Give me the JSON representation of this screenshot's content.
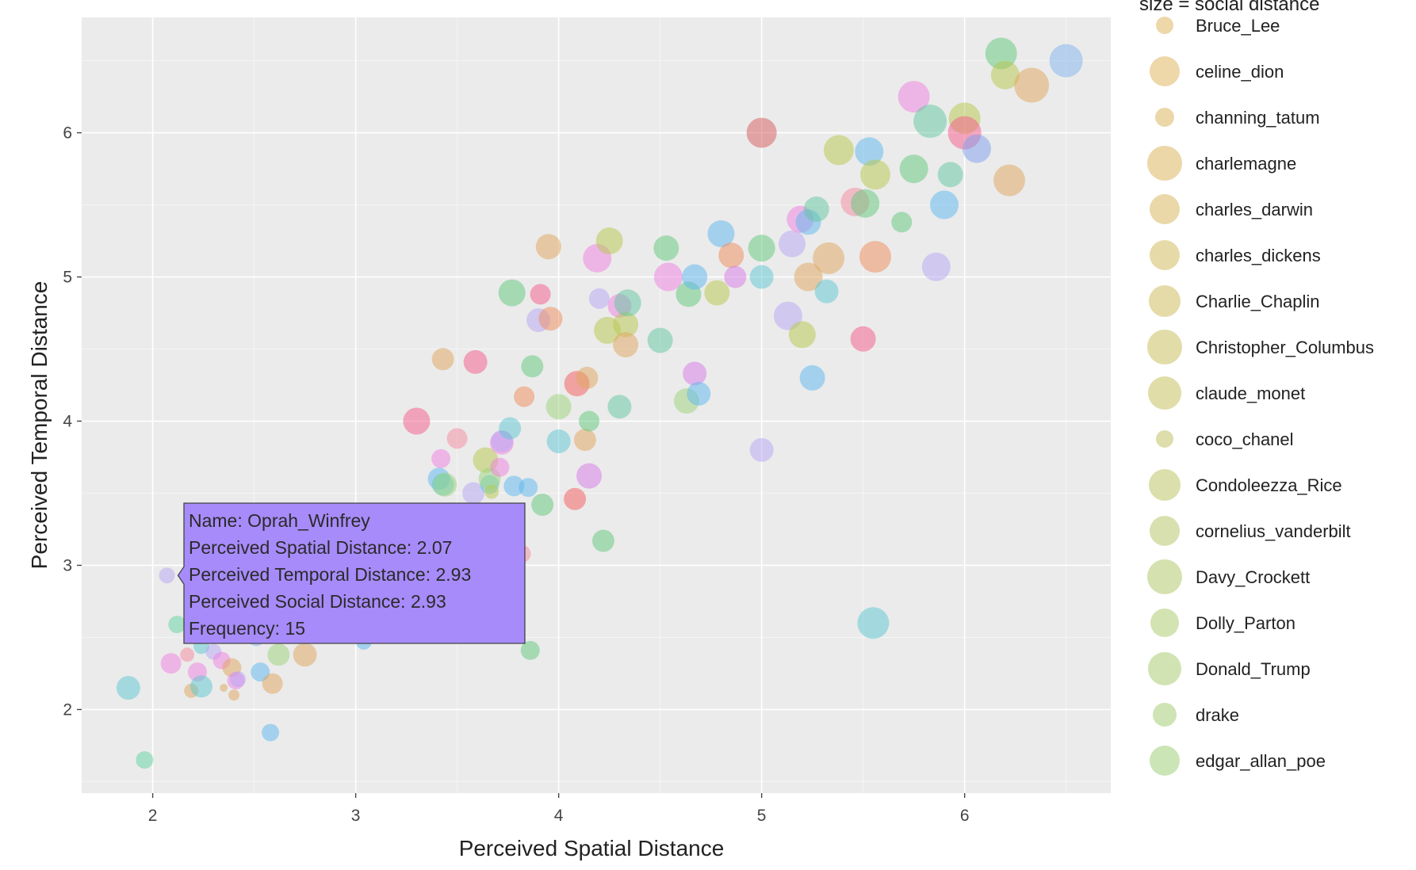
{
  "chart_data": {
    "type": "scatter",
    "xlabel": "Perceived Spatial Distance",
    "ylabel": "Perceived Temporal Distance",
    "xlim": [
      1.65,
      6.72
    ],
    "ylim": [
      1.42,
      6.8
    ],
    "xticks": [
      2,
      3,
      4,
      5,
      6
    ],
    "yticks": [
      2,
      3,
      4,
      5,
      6
    ],
    "grid": true,
    "legend_title": "size = social distance",
    "legend": [
      {
        "name": "Bruce_Lee",
        "color": "#e8c98c",
        "size": 11
      },
      {
        "name": "celine_dion",
        "color": "#e8c98c",
        "size": 19
      },
      {
        "name": "channing_tatum",
        "color": "#e6c98c",
        "size": 12
      },
      {
        "name": "charlemagne",
        "color": "#e5ca8c",
        "size": 22
      },
      {
        "name": "charles_darwin",
        "color": "#e3cb8c",
        "size": 19
      },
      {
        "name": "charles_dickens",
        "color": "#dfcd8c",
        "size": 19
      },
      {
        "name": "Charlie_Chaplin",
        "color": "#dccf8c",
        "size": 20
      },
      {
        "name": "Christopher_Columbus",
        "color": "#d8d08c",
        "size": 22
      },
      {
        "name": "claude_monet",
        "color": "#d5d18c",
        "size": 21
      },
      {
        "name": "coco_chanel",
        "color": "#d2d38f",
        "size": 11
      },
      {
        "name": "Condoleezza_Rice",
        "color": "#cfd48f",
        "size": 20
      },
      {
        "name": "cornelius_vanderbilt",
        "color": "#cbd695",
        "size": 19
      },
      {
        "name": "Davy_Crockett",
        "color": "#c8d795",
        "size": 22
      },
      {
        "name": "Dolly_Parton",
        "color": "#c4d998",
        "size": 18
      },
      {
        "name": "Donald_Trump",
        "color": "#c1da98",
        "size": 21
      },
      {
        "name": "drake",
        "color": "#bddb9b",
        "size": 15
      },
      {
        "name": "edgar_allan_poe",
        "color": "#badc9e",
        "size": 19
      }
    ],
    "points": [
      {
        "x": 1.88,
        "y": 2.15,
        "r": 15,
        "c": "#5bc8d2"
      },
      {
        "x": 1.96,
        "y": 1.65,
        "r": 11,
        "c": "#5fd3a0"
      },
      {
        "x": 2.07,
        "y": 2.93,
        "r": 10,
        "c": "#b7a6f5"
      },
      {
        "x": 2.09,
        "y": 2.32,
        "r": 13,
        "c": "#f07fe0"
      },
      {
        "x": 2.12,
        "y": 2.59,
        "r": 11,
        "c": "#5fd3a0"
      },
      {
        "x": 2.17,
        "y": 2.38,
        "r": 9,
        "c": "#f58aa0"
      },
      {
        "x": 2.19,
        "y": 2.13,
        "r": 9,
        "c": "#e0a55c"
      },
      {
        "x": 2.22,
        "y": 2.26,
        "r": 12,
        "c": "#f07fe0"
      },
      {
        "x": 2.24,
        "y": 2.16,
        "r": 14,
        "c": "#5bc8d2"
      },
      {
        "x": 2.24,
        "y": 2.44,
        "r": 10,
        "c": "#5bc8d2"
      },
      {
        "x": 2.3,
        "y": 2.4,
        "r": 10,
        "c": "#b7a6f5"
      },
      {
        "x": 2.34,
        "y": 2.34,
        "r": 11,
        "c": "#f07fe0"
      },
      {
        "x": 2.35,
        "y": 2.15,
        "r": 5,
        "c": "#e0a55c"
      },
      {
        "x": 2.39,
        "y": 2.29,
        "r": 12,
        "c": "#e0a55c"
      },
      {
        "x": 2.4,
        "y": 2.1,
        "r": 7,
        "c": "#e0a55c"
      },
      {
        "x": 2.41,
        "y": 2.2,
        "r": 11,
        "c": "#f07fe0"
      },
      {
        "x": 2.42,
        "y": 2.21,
        "r": 10,
        "c": "#b7a6f5"
      },
      {
        "x": 2.51,
        "y": 2.5,
        "r": 11,
        "c": "#7fb3f0"
      },
      {
        "x": 2.53,
        "y": 2.26,
        "r": 12,
        "c": "#5bb8f0"
      },
      {
        "x": 2.58,
        "y": 1.84,
        "r": 11,
        "c": "#5bb8f0"
      },
      {
        "x": 2.59,
        "y": 2.18,
        "r": 13,
        "c": "#e0a55c"
      },
      {
        "x": 2.62,
        "y": 2.38,
        "r": 14,
        "c": "#9bd37a"
      },
      {
        "x": 2.75,
        "y": 2.38,
        "r": 15,
        "c": "#e0a55c"
      },
      {
        "x": 3.04,
        "y": 2.47,
        "r": 10,
        "c": "#5bb8f0"
      },
      {
        "x": 3.15,
        "y": 3.38,
        "r": 9,
        "c": "#5bb8f0"
      },
      {
        "x": 3.3,
        "y": 3.33,
        "r": 13,
        "c": "#f58aa0"
      },
      {
        "x": 3.3,
        "y": 4.0,
        "r": 17,
        "c": "#f55a8a"
      },
      {
        "x": 3.41,
        "y": 3.6,
        "r": 14,
        "c": "#5bb8f0"
      },
      {
        "x": 3.42,
        "y": 3.74,
        "r": 12,
        "c": "#f07fe0"
      },
      {
        "x": 3.43,
        "y": 3.56,
        "r": 14,
        "c": "#5bc8d2"
      },
      {
        "x": 3.43,
        "y": 4.43,
        "r": 14,
        "c": "#e0a55c"
      },
      {
        "x": 3.44,
        "y": 3.56,
        "r": 15,
        "c": "#9bd37a"
      },
      {
        "x": 3.5,
        "y": 3.88,
        "r": 13,
        "c": "#f58aa0"
      },
      {
        "x": 3.58,
        "y": 3.5,
        "r": 14,
        "c": "#b7a6f5"
      },
      {
        "x": 3.59,
        "y": 4.41,
        "r": 15,
        "c": "#f55a8a"
      },
      {
        "x": 3.64,
        "y": 3.73,
        "r": 16,
        "c": "#b8c84a"
      },
      {
        "x": 3.66,
        "y": 3.56,
        "r": 12,
        "c": "#5bc8d2"
      },
      {
        "x": 3.66,
        "y": 3.6,
        "r": 14,
        "c": "#9bd37a"
      },
      {
        "x": 3.67,
        "y": 3.51,
        "r": 9,
        "c": "#b8c84a"
      },
      {
        "x": 3.71,
        "y": 3.68,
        "r": 12,
        "c": "#f07fe0"
      },
      {
        "x": 3.72,
        "y": 3.85,
        "r": 15,
        "c": "#f07fe0"
      },
      {
        "x": 3.72,
        "y": 3.86,
        "r": 14,
        "c": "#b7a6f5"
      },
      {
        "x": 3.76,
        "y": 3.95,
        "r": 14,
        "c": "#5bc8d2"
      },
      {
        "x": 3.77,
        "y": 4.89,
        "r": 17,
        "c": "#5fc87a"
      },
      {
        "x": 3.78,
        "y": 3.55,
        "r": 13,
        "c": "#5bb8f0"
      },
      {
        "x": 3.82,
        "y": 3.08,
        "r": 11,
        "c": "#f58aa0"
      },
      {
        "x": 3.83,
        "y": 4.17,
        "r": 13,
        "c": "#f08a5a"
      },
      {
        "x": 3.85,
        "y": 3.54,
        "r": 12,
        "c": "#5bb8f0"
      },
      {
        "x": 3.86,
        "y": 2.41,
        "r": 12,
        "c": "#5fc87a"
      },
      {
        "x": 3.87,
        "y": 4.38,
        "r": 14,
        "c": "#5fc87a"
      },
      {
        "x": 3.9,
        "y": 4.7,
        "r": 15,
        "c": "#b7a6f5"
      },
      {
        "x": 3.91,
        "y": 4.88,
        "r": 13,
        "c": "#f55a8a"
      },
      {
        "x": 3.92,
        "y": 3.42,
        "r": 14,
        "c": "#5fc87a"
      },
      {
        "x": 3.95,
        "y": 5.21,
        "r": 16,
        "c": "#e0a55c"
      },
      {
        "x": 3.96,
        "y": 4.71,
        "r": 15,
        "c": "#f08a5a"
      },
      {
        "x": 4.0,
        "y": 3.86,
        "r": 15,
        "c": "#5bc8d2"
      },
      {
        "x": 4.0,
        "y": 4.1,
        "r": 16,
        "c": "#9bd37a"
      },
      {
        "x": 4.08,
        "y": 3.46,
        "r": 14,
        "c": "#f55a5a"
      },
      {
        "x": 4.09,
        "y": 4.26,
        "r": 16,
        "c": "#f55a5a"
      },
      {
        "x": 4.13,
        "y": 3.87,
        "r": 14,
        "c": "#e0a55c"
      },
      {
        "x": 4.14,
        "y": 4.3,
        "r": 14,
        "c": "#e0a55c"
      },
      {
        "x": 4.15,
        "y": 3.62,
        "r": 16,
        "c": "#d67ae8"
      },
      {
        "x": 4.15,
        "y": 4.0,
        "r": 13,
        "c": "#5fc87a"
      },
      {
        "x": 4.19,
        "y": 5.13,
        "r": 18,
        "c": "#f07fe0"
      },
      {
        "x": 4.2,
        "y": 4.85,
        "r": 13,
        "c": "#b7a6f5"
      },
      {
        "x": 4.22,
        "y": 3.17,
        "r": 14,
        "c": "#5fc87a"
      },
      {
        "x": 4.24,
        "y": 4.63,
        "r": 17,
        "c": "#b8c84a"
      },
      {
        "x": 4.25,
        "y": 5.25,
        "r": 17,
        "c": "#b8c84a"
      },
      {
        "x": 4.3,
        "y": 4.1,
        "r": 15,
        "c": "#5fc8a0"
      },
      {
        "x": 4.3,
        "y": 4.8,
        "r": 15,
        "c": "#f07fe0"
      },
      {
        "x": 4.33,
        "y": 4.67,
        "r": 16,
        "c": "#b8c84a"
      },
      {
        "x": 4.33,
        "y": 4.53,
        "r": 16,
        "c": "#e0a55c"
      },
      {
        "x": 4.34,
        "y": 4.82,
        "r": 17,
        "c": "#5fc8a0"
      },
      {
        "x": 4.5,
        "y": 4.56,
        "r": 16,
        "c": "#5fc8a0"
      },
      {
        "x": 4.53,
        "y": 5.2,
        "r": 16,
        "c": "#5fc87a"
      },
      {
        "x": 4.54,
        "y": 5.0,
        "r": 18,
        "c": "#f07fe0"
      },
      {
        "x": 4.63,
        "y": 4.14,
        "r": 16,
        "c": "#9bd37a"
      },
      {
        "x": 4.64,
        "y": 4.88,
        "r": 16,
        "c": "#5fc87a"
      },
      {
        "x": 4.67,
        "y": 4.33,
        "r": 15,
        "c": "#d67ae8"
      },
      {
        "x": 4.67,
        "y": 5.0,
        "r": 16,
        "c": "#5bb8f0"
      },
      {
        "x": 4.69,
        "y": 4.19,
        "r": 15,
        "c": "#5bb8f0"
      },
      {
        "x": 4.78,
        "y": 4.89,
        "r": 16,
        "c": "#b8c84a"
      },
      {
        "x": 4.8,
        "y": 5.3,
        "r": 17,
        "c": "#5bb8f0"
      },
      {
        "x": 4.85,
        "y": 5.15,
        "r": 16,
        "c": "#f08a5a"
      },
      {
        "x": 4.87,
        "y": 5.0,
        "r": 14,
        "c": "#d67ae8"
      },
      {
        "x": 5.0,
        "y": 3.8,
        "r": 15,
        "c": "#b7a6f5"
      },
      {
        "x": 5.0,
        "y": 5.0,
        "r": 15,
        "c": "#5bc8d2"
      },
      {
        "x": 5.0,
        "y": 5.2,
        "r": 17,
        "c": "#5fc87a"
      },
      {
        "x": 5.0,
        "y": 6.0,
        "r": 19,
        "c": "#d65a5a"
      },
      {
        "x": 5.13,
        "y": 4.73,
        "r": 18,
        "c": "#b7a6f5"
      },
      {
        "x": 5.15,
        "y": 5.23,
        "r": 17,
        "c": "#b7a6f5"
      },
      {
        "x": 5.19,
        "y": 5.4,
        "r": 17,
        "c": "#f07fe0"
      },
      {
        "x": 5.2,
        "y": 4.6,
        "r": 17,
        "c": "#b8c84a"
      },
      {
        "x": 5.23,
        "y": 5.0,
        "r": 18,
        "c": "#e0a55c"
      },
      {
        "x": 5.23,
        "y": 5.38,
        "r": 16,
        "c": "#5bb8f0"
      },
      {
        "x": 5.25,
        "y": 4.3,
        "r": 16,
        "c": "#5bb8f0"
      },
      {
        "x": 5.27,
        "y": 5.47,
        "r": 16,
        "c": "#5fc8a0"
      },
      {
        "x": 5.32,
        "y": 4.9,
        "r": 15,
        "c": "#5bc8d2"
      },
      {
        "x": 5.33,
        "y": 5.13,
        "r": 20,
        "c": "#e0a55c"
      },
      {
        "x": 5.38,
        "y": 5.88,
        "r": 19,
        "c": "#b8c84a"
      },
      {
        "x": 5.46,
        "y": 5.52,
        "r": 18,
        "c": "#f58aa0"
      },
      {
        "x": 5.5,
        "y": 4.57,
        "r": 16,
        "c": "#f55a8a"
      },
      {
        "x": 5.51,
        "y": 5.51,
        "r": 18,
        "c": "#5fc87a"
      },
      {
        "x": 5.53,
        "y": 5.87,
        "r": 18,
        "c": "#5bb8f0"
      },
      {
        "x": 5.55,
        "y": 2.6,
        "r": 20,
        "c": "#5bc8d2"
      },
      {
        "x": 5.56,
        "y": 5.14,
        "r": 20,
        "c": "#f08a5a"
      },
      {
        "x": 5.56,
        "y": 5.71,
        "r": 19,
        "c": "#b8c84a"
      },
      {
        "x": 5.69,
        "y": 5.38,
        "r": 13,
        "c": "#5fc87a"
      },
      {
        "x": 5.75,
        "y": 5.75,
        "r": 18,
        "c": "#5fc87a"
      },
      {
        "x": 5.75,
        "y": 6.25,
        "r": 20,
        "c": "#f07fe0"
      },
      {
        "x": 5.83,
        "y": 6.08,
        "r": 21,
        "c": "#5fc8a0"
      },
      {
        "x": 5.86,
        "y": 5.07,
        "r": 18,
        "c": "#b7a6f5"
      },
      {
        "x": 5.9,
        "y": 5.5,
        "r": 18,
        "c": "#5bb8f0"
      },
      {
        "x": 5.93,
        "y": 5.71,
        "r": 16,
        "c": "#5fc8a0"
      },
      {
        "x": 6.0,
        "y": 6.1,
        "r": 20,
        "c": "#b8c84a"
      },
      {
        "x": 6.0,
        "y": 6.0,
        "r": 21,
        "c": "#f55a8a"
      },
      {
        "x": 6.06,
        "y": 5.89,
        "r": 18,
        "c": "#7f9ef0"
      },
      {
        "x": 6.18,
        "y": 6.55,
        "r": 20,
        "c": "#5fc87a"
      },
      {
        "x": 6.2,
        "y": 6.4,
        "r": 18,
        "c": "#b8c84a"
      },
      {
        "x": 6.22,
        "y": 5.67,
        "r": 20,
        "c": "#e0a55c"
      },
      {
        "x": 6.33,
        "y": 6.33,
        "r": 22,
        "c": "#e0a55c"
      },
      {
        "x": 6.5,
        "y": 6.5,
        "r": 21,
        "c": "#7fb3f0"
      }
    ],
    "tooltip": {
      "target": {
        "x": 2.07,
        "y": 2.93
      },
      "lines": [
        "Name:  Oprah_Winfrey",
        "Perceived Spatial Distance:  2.07",
        "Perceived Temporal Distance:  2.93",
        "Perceived Social Distance:  2.93",
        "Frequency:  15"
      ],
      "background": "#a78bfa"
    },
    "colors": {
      "plot_background": "#ebebeb",
      "grid": "#ffffff"
    }
  }
}
